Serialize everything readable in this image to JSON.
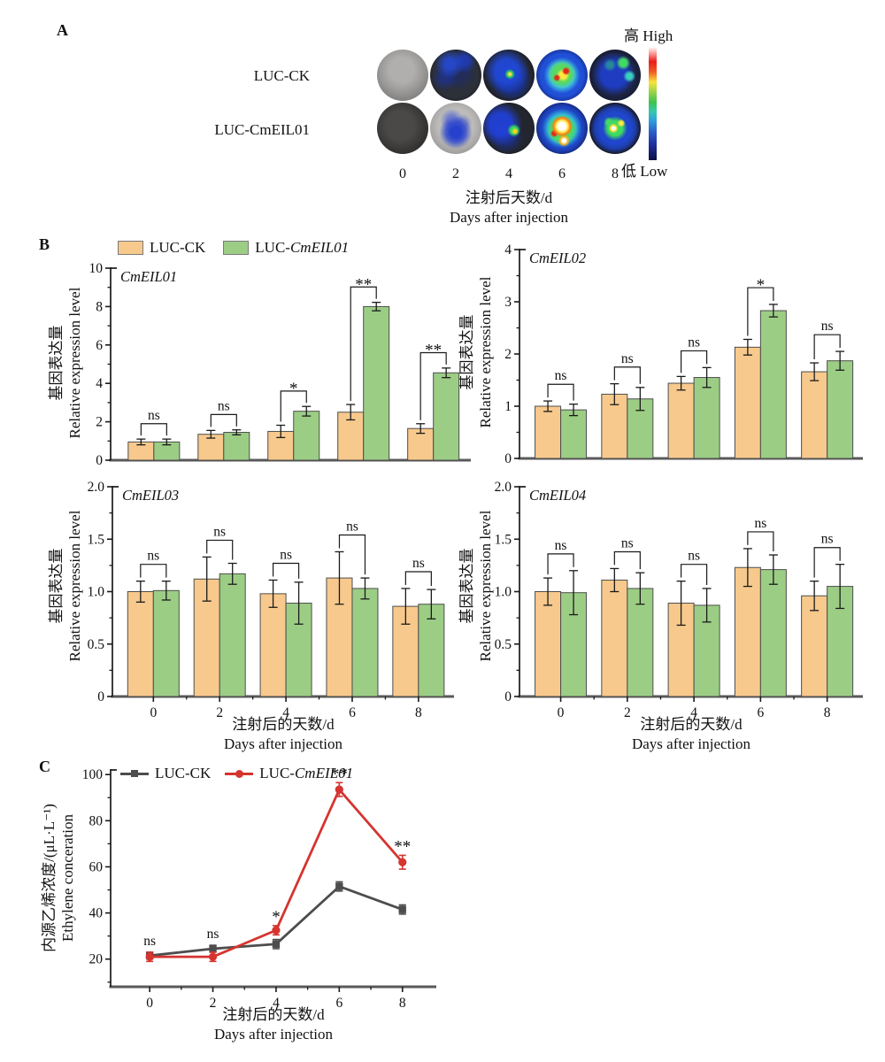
{
  "panels": {
    "a": "A",
    "b": "B",
    "c": "C"
  },
  "panel_a": {
    "row_labels": [
      "LUC-CK",
      "LUC-CmEIL01"
    ],
    "days": [
      "0",
      "2",
      "4",
      "6",
      "8"
    ],
    "xlabel_cn": "注射后天数/d",
    "xlabel_en": "Days after injection",
    "colorbar_high": "高 High",
    "colorbar_low": "低 Low"
  },
  "panel_b_legend": {
    "ck_label": "LUC-CK",
    "treat_prefix": "LUC-",
    "treat_gene": "CmEIL01",
    "ck_color": "#F7C98C",
    "treat_color": "#9CCD85"
  },
  "panel_c_legend": {
    "ck_label": "LUC-CK",
    "treat_prefix": "LUC-",
    "treat_gene": "CmEIL01",
    "ck_color": "#4D4D4D",
    "treat_color": "#D5342F"
  },
  "chart_data": [
    {
      "id": "CmEIL01",
      "type": "bar",
      "title": "CmEIL01",
      "categories": [
        "0",
        "2",
        "4",
        "6",
        "8"
      ],
      "series": [
        {
          "name": "LUC-CK",
          "color": "#F7C98C",
          "values": [
            0.95,
            1.35,
            1.5,
            2.5,
            1.65
          ],
          "errors": [
            0.15,
            0.2,
            0.32,
            0.4,
            0.25
          ]
        },
        {
          "name": "LUC-CmEIL01",
          "color": "#9CCD85",
          "values": [
            0.95,
            1.45,
            2.55,
            8.0,
            4.55
          ],
          "errors": [
            0.15,
            0.13,
            0.25,
            0.22,
            0.25
          ]
        }
      ],
      "significance": [
        "ns",
        "ns",
        "*",
        "**",
        "**"
      ],
      "ylim": [
        0,
        10
      ],
      "yticks": [
        0,
        2,
        4,
        6,
        8,
        10
      ],
      "ytick_labels": [
        "0",
        "2",
        "4",
        "6",
        "8",
        "10"
      ],
      "yticks_minor": [
        1,
        3,
        5,
        7,
        9
      ],
      "ylabel_cn": "基因表达量",
      "ylabel_en": "Relative expression level",
      "show_xticklabels": false
    },
    {
      "id": "CmEIL02",
      "type": "bar",
      "title": "CmEIL02",
      "categories": [
        "0",
        "2",
        "4",
        "6",
        "8"
      ],
      "series": [
        {
          "name": "LUC-CK",
          "color": "#F7C98C",
          "values": [
            1.0,
            1.23,
            1.44,
            2.13,
            1.66
          ],
          "errors": [
            0.1,
            0.2,
            0.13,
            0.15,
            0.17
          ]
        },
        {
          "name": "LUC-CmEIL01",
          "color": "#9CCD85",
          "values": [
            0.93,
            1.14,
            1.55,
            2.83,
            1.87
          ],
          "errors": [
            0.11,
            0.22,
            0.19,
            0.12,
            0.18
          ]
        }
      ],
      "significance": [
        "ns",
        "ns",
        "ns",
        "*",
        "ns"
      ],
      "ylim": [
        0,
        4
      ],
      "yticks": [
        0,
        1,
        2,
        3,
        4
      ],
      "ytick_labels": [
        "0",
        "1",
        "2",
        "3",
        "4"
      ],
      "yticks_minor": [
        0.5,
        1.5,
        2.5,
        3.5
      ],
      "ylabel_cn": "基因表达量",
      "ylabel_en": "Relative expression level",
      "show_xticklabels": false
    },
    {
      "id": "CmEIL03",
      "type": "bar",
      "title": "CmEIL03",
      "categories": [
        "0",
        "2",
        "4",
        "6",
        "8"
      ],
      "series": [
        {
          "name": "LUC-CK",
          "color": "#F7C98C",
          "values": [
            1.0,
            1.12,
            0.98,
            1.13,
            0.86
          ],
          "errors": [
            0.1,
            0.21,
            0.13,
            0.25,
            0.17
          ]
        },
        {
          "name": "LUC-CmEIL01",
          "color": "#9CCD85",
          "values": [
            1.01,
            1.17,
            0.89,
            1.03,
            0.88
          ],
          "errors": [
            0.09,
            0.1,
            0.2,
            0.1,
            0.14
          ]
        }
      ],
      "significance": [
        "ns",
        "ns",
        "ns",
        "ns",
        "ns"
      ],
      "ylim": [
        0,
        2
      ],
      "yticks": [
        0,
        0.5,
        1.0,
        1.5,
        2.0
      ],
      "ytick_labels": [
        "0",
        "0.5",
        "1.0",
        "1.5",
        "2.0"
      ],
      "yticks_minor": [
        0.25,
        0.75,
        1.25,
        1.75
      ],
      "ylabel_cn": "基因表达量",
      "ylabel_en": "Relative expression level",
      "show_xticklabels": true,
      "xlabel_cn": "注射后的天数/d",
      "xlabel_en": "Days after injection"
    },
    {
      "id": "CmEIL04",
      "type": "bar",
      "title": "CmEIL04",
      "categories": [
        "0",
        "2",
        "4",
        "6",
        "8"
      ],
      "series": [
        {
          "name": "LUC-CK",
          "color": "#F7C98C",
          "values": [
            1.0,
            1.11,
            0.89,
            1.23,
            0.96
          ],
          "errors": [
            0.13,
            0.11,
            0.21,
            0.18,
            0.14
          ]
        },
        {
          "name": "LUC-CmEIL01",
          "color": "#9CCD85",
          "values": [
            0.99,
            1.03,
            0.87,
            1.21,
            1.05
          ],
          "errors": [
            0.21,
            0.15,
            0.16,
            0.14,
            0.21
          ]
        }
      ],
      "significance": [
        "ns",
        "ns",
        "ns",
        "ns",
        "ns"
      ],
      "ylim": [
        0,
        2
      ],
      "yticks": [
        0,
        0.5,
        1.0,
        1.5,
        2.0
      ],
      "ytick_labels": [
        "0",
        "0.5",
        "1.0",
        "1.5",
        "2.0"
      ],
      "yticks_minor": [
        0.25,
        0.75,
        1.25,
        1.75
      ],
      "ylabel_cn": "基因表达量",
      "ylabel_en": "Relative expression level",
      "show_xticklabels": true,
      "xlabel_cn": "注射后的天数/d",
      "xlabel_en": "Days after injection"
    },
    {
      "id": "ethylene",
      "type": "line",
      "categories": [
        "0",
        "2",
        "4",
        "6",
        "8"
      ],
      "series": [
        {
          "name": "LUC-CK",
          "color": "#4D4D4D",
          "marker": "square",
          "values": [
            21.5,
            24.5,
            26.5,
            51.5,
            41.5
          ],
          "errors": [
            1.5,
            1.5,
            2,
            2,
            2
          ]
        },
        {
          "name": "LUC-CmEIL01",
          "color": "#D5342F",
          "marker": "circle",
          "values": [
            21,
            21,
            32.5,
            93.5,
            62
          ],
          "errors": [
            2,
            2,
            2,
            3,
            3
          ]
        }
      ],
      "significance": [
        "ns",
        "ns",
        "*",
        "**",
        "**"
      ],
      "ylim": [
        8,
        102
      ],
      "yticks": [
        20,
        40,
        60,
        80,
        100
      ],
      "ytick_labels": [
        "20",
        "40",
        "60",
        "80",
        "100"
      ],
      "yticks_minor": [
        10,
        30,
        50,
        70,
        90
      ],
      "ylabel_cn": "内源乙烯浓度/(μL·L⁻¹)",
      "ylabel_en": "Ethylene conceration",
      "show_xticklabels": true,
      "xlabel_cn": "注射后的天数/d",
      "xlabel_en": "Days after injection"
    }
  ]
}
